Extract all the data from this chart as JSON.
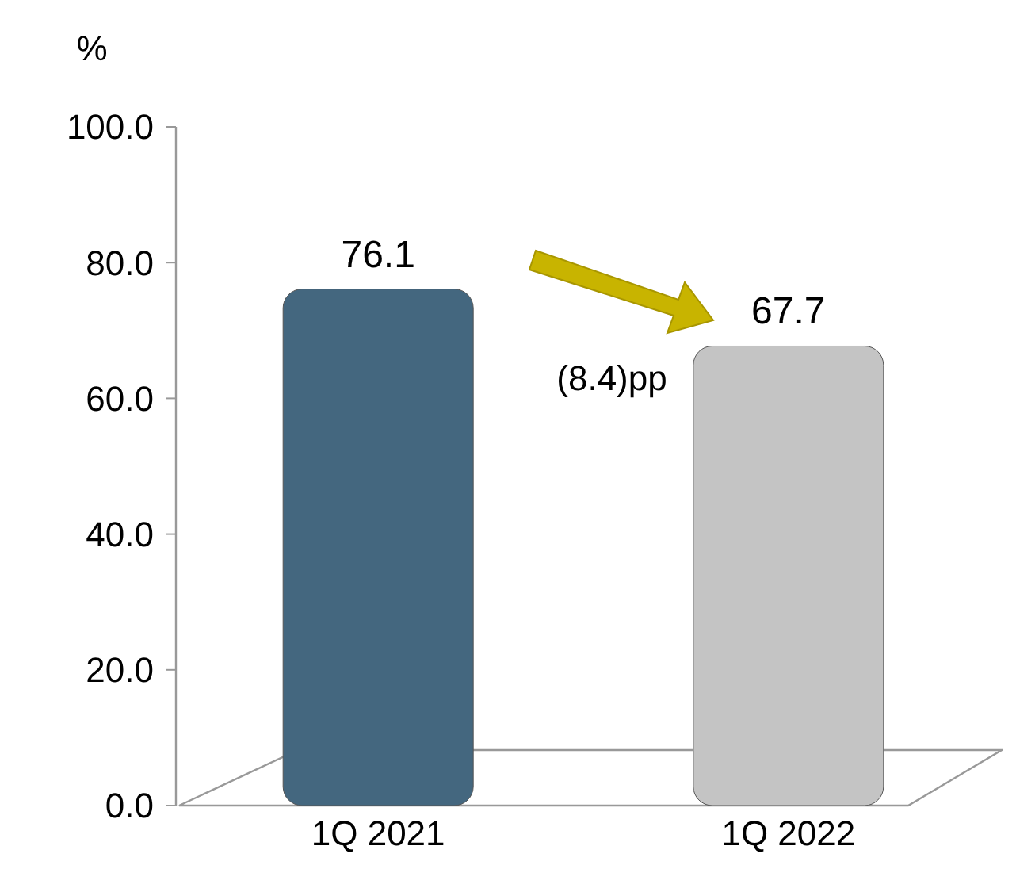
{
  "chart_data": {
    "type": "bar",
    "ylabel": "%",
    "categories": [
      "1Q 2021",
      "1Q 2022"
    ],
    "values": [
      76.1,
      67.7
    ],
    "colors": [
      "#44677f",
      "#c4c4c4"
    ],
    "ylim": [
      0,
      100
    ],
    "yticks": [
      {
        "value": 0,
        "label": "0.0"
      },
      {
        "value": 20,
        "label": "20.0"
      },
      {
        "value": 40,
        "label": "40.0"
      },
      {
        "value": 60,
        "label": "60.0"
      },
      {
        "value": 80,
        "label": "80.0"
      },
      {
        "value": 100,
        "label": "100.0"
      }
    ],
    "data_labels": true,
    "grid": false,
    "annotations": [
      "(8.4)pp"
    ]
  }
}
